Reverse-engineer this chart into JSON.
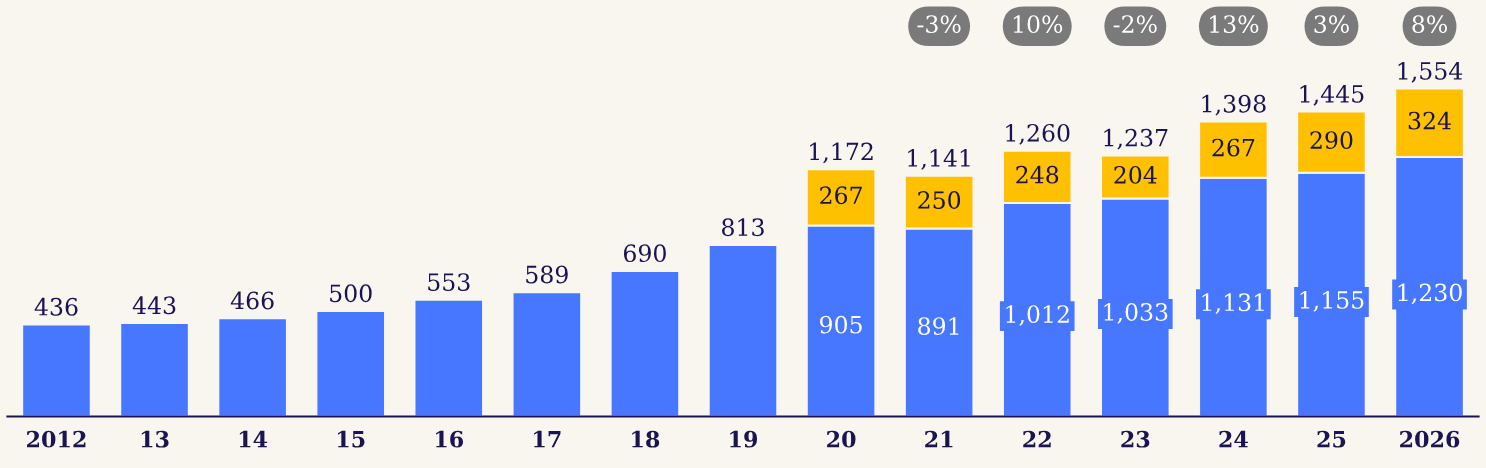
{
  "chart_data": {
    "type": "bar",
    "stacked": true,
    "legend": false,
    "grid": false,
    "categories": [
      "2012",
      "13",
      "14",
      "15",
      "16",
      "17",
      "18",
      "19",
      "20",
      "21",
      "22",
      "23",
      "24",
      "25",
      "2026"
    ],
    "series": [
      {
        "color": "#4777ff",
        "values": [
          436,
          443,
          466,
          500,
          553,
          589,
          690,
          813,
          905,
          891,
          1012,
          1033,
          1131,
          1155,
          1230
        ],
        "value_labels": [
          "436",
          "443",
          "466",
          "500",
          "553",
          "589",
          "690",
          "813",
          "905",
          "891",
          "1,012",
          "1,033",
          "1,131",
          "1,155",
          "1,230"
        ]
      },
      {
        "color": "#ffc000",
        "values": [
          null,
          null,
          null,
          null,
          null,
          null,
          null,
          null,
          267,
          250,
          248,
          204,
          267,
          290,
          324
        ],
        "value_labels": [
          null,
          null,
          null,
          null,
          null,
          null,
          null,
          null,
          "267",
          "250",
          "248",
          "204",
          "267",
          "290",
          "324"
        ]
      }
    ],
    "totals": [
      null,
      null,
      null,
      null,
      null,
      null,
      null,
      null,
      "1,172",
      "1,141",
      "1,260",
      "1,237",
      "1,398",
      "1,445",
      "1,554"
    ],
    "annotations": [
      "-3%",
      "10%",
      "-2%",
      "13%",
      "3%",
      "8%"
    ]
  }
}
